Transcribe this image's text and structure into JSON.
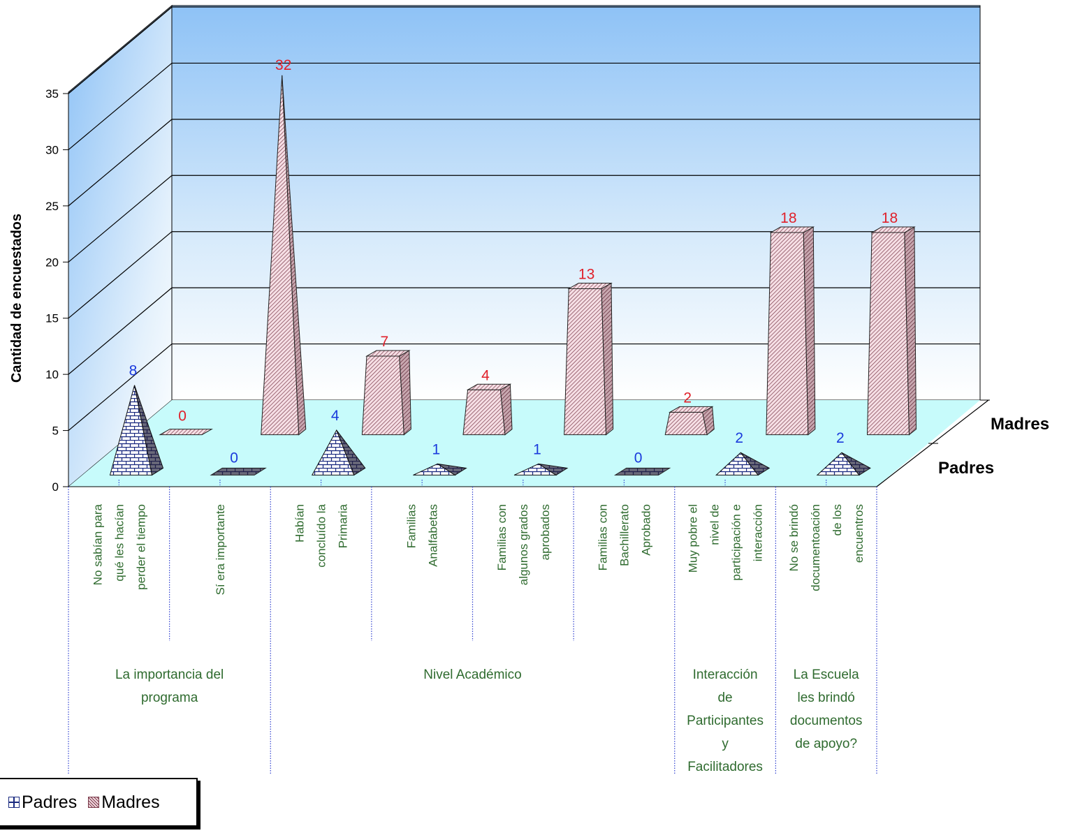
{
  "chart_data": {
    "type": "bar",
    "ylabel": "Cantidad de encuestados",
    "ylim": [
      0,
      35
    ],
    "yticks": [
      0,
      5,
      10,
      15,
      20,
      25,
      30,
      35
    ],
    "categories": [
      "No sabían para qué les hacían perder el tiempo",
      "Sí era importante",
      "Habían concluído la Primaria",
      "Familias Analfabetas",
      "Familias con algunos grados aprobados",
      "Familias con Bachillerato Aprobado",
      "Muy pobre el nivel de participación e interacción",
      "No se brindó documentoación de los encuentros"
    ],
    "category_lines": [
      [
        "No sabían para",
        "qué les hacían",
        "perder el tiempo"
      ],
      [
        "Sí era importante"
      ],
      [
        "Habían",
        "concluído la",
        "Primaria"
      ],
      [
        "Familias",
        "Analfabetas"
      ],
      [
        "Familias con",
        "algunos grados",
        "aprobados"
      ],
      [
        "Familias con",
        "Bachillerato",
        "Aprobado"
      ],
      [
        "Muy pobre el",
        "nivel de",
        "participación e",
        "interacción"
      ],
      [
        "No se brindó",
        "documentoación",
        "de los",
        "encuentros"
      ]
    ],
    "groups": [
      {
        "label_lines": [
          "La importancia del",
          "programa"
        ],
        "span": [
          0,
          1
        ]
      },
      {
        "label_lines": [
          "Nivel Académico"
        ],
        "span": [
          2,
          5
        ]
      },
      {
        "label_lines": [
          "Interacción",
          "de",
          "Participantes",
          "y",
          "Facilitadores"
        ],
        "span": [
          6,
          6
        ]
      },
      {
        "label_lines": [
          "La Escuela",
          "les brindó",
          "documentos",
          "de apoyo?"
        ],
        "span": [
          7,
          7
        ]
      }
    ],
    "series": [
      {
        "name": "Padres",
        "values": [
          8,
          0,
          4,
          1,
          1,
          0,
          2,
          2
        ],
        "shape": "pyramid",
        "color": "#1a2a80",
        "label_color": "#1a3adc"
      },
      {
        "name": "Madres",
        "values": [
          0,
          32,
          7,
          4,
          13,
          2,
          18,
          18
        ],
        "shape": "cone",
        "color": "#7a3a4a",
        "label_color": "#e0202a"
      }
    ],
    "depth_labels": [
      "Madres",
      "Padres"
    ],
    "legend": [
      "Padres",
      "Madres"
    ],
    "legend_position": "bottom-left",
    "grid": true,
    "colors": {
      "wall_top": "#9dcbf7",
      "wall_bottom": "#ffffff",
      "floor": "#c7fbfb",
      "padres": "#1a2a80",
      "madres": "#7a3a4a"
    }
  }
}
